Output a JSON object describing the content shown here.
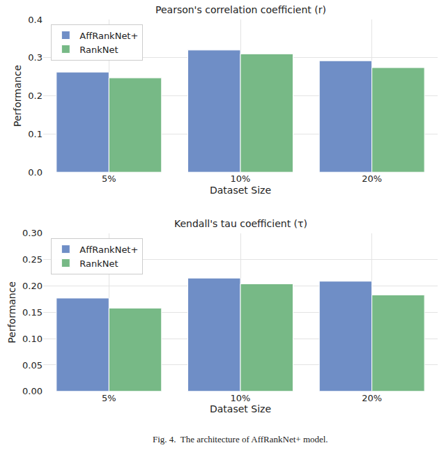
{
  "chart_data": [
    {
      "type": "bar",
      "title": "Pearson's correlation coefficient (r)",
      "x_label": "Dataset Size",
      "y_label": "Performance",
      "categories": [
        "5%",
        "10%",
        "20%"
      ],
      "series": [
        {
          "name": "AffRankNet+",
          "color": "#6f8ec6",
          "values": [
            0.262,
            0.32,
            0.292
          ]
        },
        {
          "name": "RankNet",
          "color": "#77b986",
          "values": [
            0.247,
            0.31,
            0.274
          ]
        }
      ],
      "ylim": [
        0,
        0.4
      ],
      "yticks": [
        {
          "value": 0,
          "label": "0.0"
        },
        0.1,
        0.2,
        0.3,
        0.4
      ],
      "grid": true,
      "legend": "upper left"
    },
    {
      "type": "bar",
      "title": "Kendall's tau coefficient (τ)",
      "x_label": "Dataset Size",
      "y_label": "Performance",
      "categories": [
        "5%",
        "10%",
        "20%"
      ],
      "series": [
        {
          "name": "AffRankNet+",
          "color": "#6f8ec6",
          "values": [
            0.177,
            0.215,
            0.209
          ]
        },
        {
          "name": "RankNet",
          "color": "#77b986",
          "values": [
            0.158,
            0.204,
            0.183
          ]
        }
      ],
      "ylim": [
        0,
        0.3
      ],
      "yticks": [
        {
          "value": 0,
          "label": "0.00"
        },
        {
          "value": 0.05,
          "label": "0.05"
        },
        {
          "value": 0.1,
          "label": "0.10"
        },
        {
          "value": 0.15,
          "label": "0.15"
        },
        {
          "value": 0.2,
          "label": "0.20"
        },
        {
          "value": 0.25,
          "label": "0.25"
        },
        {
          "value": 0.3,
          "label": "0.30"
        }
      ],
      "grid": true,
      "legend": "upper left"
    }
  ],
  "caption": "Fig. 4.  The architecture of AffRankNet+ model."
}
